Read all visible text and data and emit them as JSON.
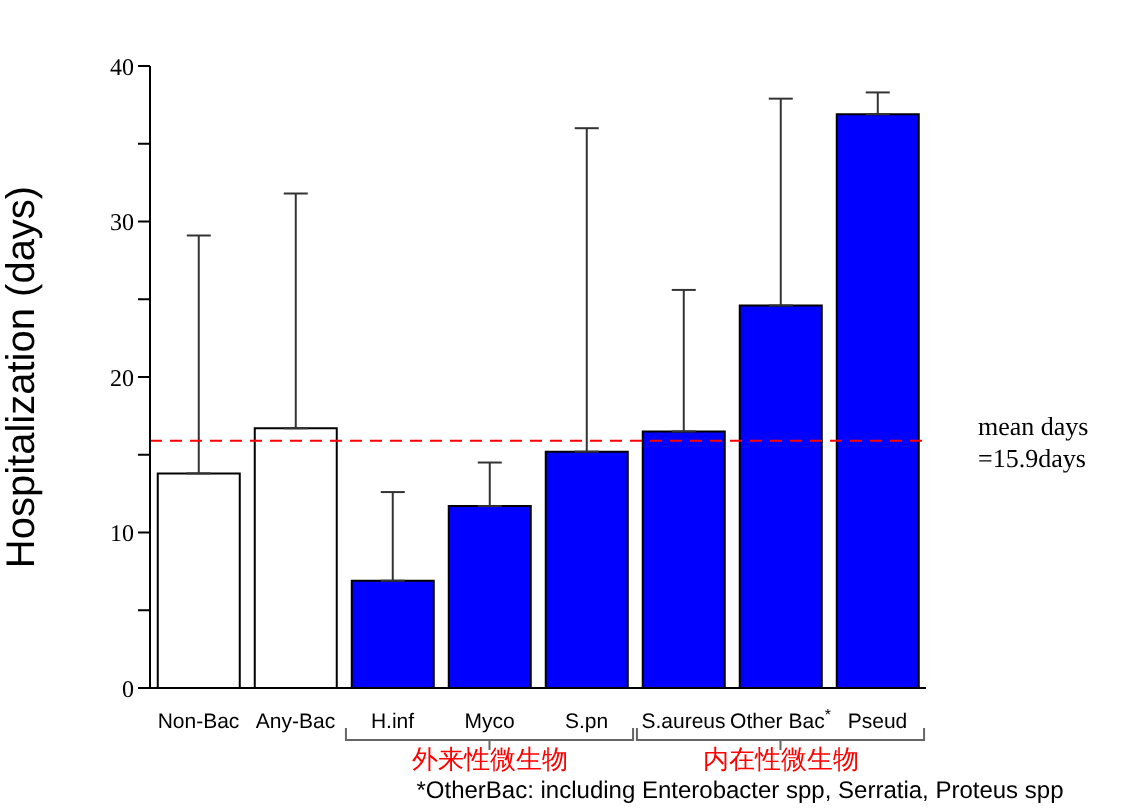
{
  "chart_data": {
    "type": "bar",
    "ylabel": "Hospitalization (days)",
    "categories": [
      "Non-Bac",
      "Any-Bac",
      "H.inf",
      "Myco",
      "S.pn",
      "S.aureus",
      "Other Bac$^{*}$",
      "Pseud"
    ],
    "values": [
      13.8,
      16.7,
      6.9,
      11.7,
      15.2,
      16.5,
      24.6,
      36.9
    ],
    "colors": [
      "#ffffff",
      "#ffffff",
      "#0000ff",
      "#0000ff",
      "#0000ff",
      "#0000ff",
      "#0000ff",
      "#0000ff"
    ],
    "errors": [
      [
        13.8,
        29.1
      ],
      [
        16.7,
        31.8
      ],
      [
        6.9,
        12.6
      ],
      [
        11.7,
        14.5
      ],
      [
        15.2,
        36.0
      ],
      [
        16.5,
        25.6
      ],
      [
        24.6,
        37.9
      ],
      [
        36.9,
        38.3
      ]
    ],
    "ylim": [
      0,
      40
    ],
    "yticks": [
      0,
      {
        "value": 5,
        "label": null
      },
      10,
      {
        "value": 15,
        "label": null
      },
      20,
      {
        "value": 25,
        "label": null
      },
      30,
      {
        "value": 35,
        "label": null
      },
      40
    ],
    "ref_lines": [
      {
        "axis": "y",
        "value": 15.9,
        "label": "mean days\n=15.9days",
        "color": "#ff0000",
        "line_style": "dashed"
      }
    ],
    "annotations": [
      "外来性微生物",
      "内在性微生物",
      "*OtherBac: including Enterobacter spp, Serratia, Proteus spp"
    ],
    "grid": false,
    "legend": false
  }
}
